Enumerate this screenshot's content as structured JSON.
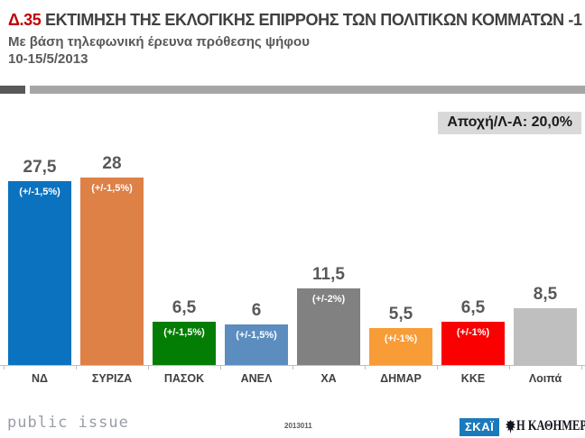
{
  "header": {
    "tag": "Δ.35",
    "title": " ΕΚΤΙΜΗΣΗ ΤΗΣ ΕΚΛΟΓΙΚΗΣ ΕΠΙΡΡΟΗΣ ΤΩΝ ΠΟΛΙΤΙΚΩΝ ΚΟΜΜΑΤΩΝ -1",
    "subtitle": "Με βάση τηλεφωνική έρευνα πρόθεσης ψήφου",
    "date_range": "10-15/5/2013"
  },
  "badge": {
    "label": "Αποχή/Λ-Α: 20,0%"
  },
  "chart_data": {
    "type": "bar",
    "title": "Δ.35 ΕΚΤΙΜΗΣΗ ΤΗΣ ΕΚΛΟΓΙΚΗΣ ΕΠΙΡΡΟΗΣ ΤΩΝ ΠΟΛΙΤΙΚΩΝ ΚΟΜΜΑΤΩΝ -1",
    "subtitle": "Με βάση τηλεφωνική έρευνα πρόθεσης ψήφου, 10-15/5/2013",
    "categories": [
      "ΝΔ",
      "ΣΥΡΙΖΑ",
      "ΠΑΣΟΚ",
      "ΑΝΕΛ",
      "ΧΑ",
      "ΔΗΜΑΡ",
      "ΚΚΕ",
      "Λοιπά"
    ],
    "values": [
      27.5,
      28,
      6.5,
      6,
      11.5,
      5.5,
      6.5,
      8.5
    ],
    "value_labels": [
      "27,5",
      "28",
      "6,5",
      "6",
      "11,5",
      "5,5",
      "6,5",
      "8,5"
    ],
    "margin_of_error": [
      "(+/-1,5%)",
      "(+/-1,5%)",
      "(+/-1,5%)",
      "(+/-1,5%)",
      "(+/-2%)",
      "(+/-1%)",
      "(+/-1%)",
      ""
    ],
    "bar_colors": [
      "#0b72c0",
      "#dd8147",
      "#047d04",
      "#5b8dbf",
      "#818181",
      "#f89c38",
      "#fb0000",
      "#bfbfbf"
    ],
    "annotation": "Αποχή/Λ-Α: 20,0%",
    "ylim": [
      0,
      30
    ],
    "grid": false,
    "legend": false,
    "xlabel": "",
    "ylabel": ""
  },
  "footer": {
    "brand": "public issue",
    "code": "2013011",
    "skai_label": "ΣΚΑΪ",
    "kathimerini_label": "Η ΚΑΘΗΜΕΡΙΝΗ"
  }
}
